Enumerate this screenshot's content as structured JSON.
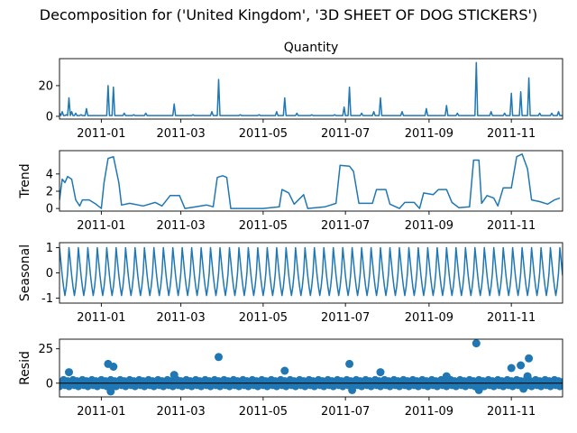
{
  "figure": {
    "suptitle": "Decomposition for ('United Kingdom', '3D SHEET OF DOG STICKERS')",
    "series_color": "#1f77b4"
  },
  "chart_data": [
    {
      "type": "line",
      "title": "Quantity",
      "ylabel": "",
      "xlim": [
        "2010-12-01",
        "2011-12-09"
      ],
      "ylim": [
        -1.8,
        37.6
      ],
      "yticks": [
        0,
        20
      ],
      "xticks": [
        "2011-01",
        "2011-03",
        "2011-05",
        "2011-07",
        "2011-09",
        "2011-11"
      ],
      "baseline": 0.5,
      "points": [
        [
          "2010-12-01",
          2
        ],
        [
          "2010-12-03",
          3
        ],
        [
          "2010-12-06",
          1
        ],
        [
          "2010-12-08",
          12
        ],
        [
          "2010-12-10",
          3
        ],
        [
          "2010-12-13",
          2
        ],
        [
          "2010-12-17",
          1
        ],
        [
          "2010-12-21",
          5
        ],
        [
          "2011-01-06",
          20
        ],
        [
          "2011-01-10",
          19
        ],
        [
          "2011-01-18",
          2
        ],
        [
          "2011-01-25",
          1
        ],
        [
          "2011-02-03",
          2
        ],
        [
          "2011-02-24",
          8
        ],
        [
          "2011-03-10",
          1
        ],
        [
          "2011-03-24",
          3
        ],
        [
          "2011-03-29",
          24
        ],
        [
          "2011-04-14",
          1
        ],
        [
          "2011-04-28",
          1
        ],
        [
          "2011-05-11",
          3
        ],
        [
          "2011-05-17",
          12
        ],
        [
          "2011-05-26",
          2
        ],
        [
          "2011-06-06",
          1
        ],
        [
          "2011-06-23",
          1
        ],
        [
          "2011-06-30",
          6
        ],
        [
          "2011-07-04",
          19
        ],
        [
          "2011-07-13",
          2
        ],
        [
          "2011-07-22",
          3
        ],
        [
          "2011-07-27",
          12
        ],
        [
          "2011-08-12",
          3
        ],
        [
          "2011-08-30",
          5
        ],
        [
          "2011-09-14",
          7
        ],
        [
          "2011-09-22",
          2
        ],
        [
          "2011-10-06",
          35
        ],
        [
          "2011-10-17",
          3
        ],
        [
          "2011-10-27",
          2
        ],
        [
          "2011-11-01",
          15
        ],
        [
          "2011-11-08",
          16
        ],
        [
          "2011-11-14",
          25
        ],
        [
          "2011-11-22",
          2
        ],
        [
          "2011-12-01",
          2
        ],
        [
          "2011-12-06",
          3
        ]
      ]
    },
    {
      "type": "line",
      "title": "",
      "ylabel": "Trend",
      "xlim": [
        "2010-12-01",
        "2011-12-09"
      ],
      "ylim": [
        -0.3,
        6.7
      ],
      "yticks": [
        0,
        2,
        4
      ],
      "xticks": [
        "2011-01",
        "2011-03",
        "2011-05",
        "2011-07",
        "2011-09",
        "2011-11"
      ],
      "points": [
        [
          "2010-12-01",
          1.0
        ],
        [
          "2010-12-03",
          3.4
        ],
        [
          "2010-12-05",
          3.0
        ],
        [
          "2010-12-07",
          3.7
        ],
        [
          "2010-12-10",
          3.4
        ],
        [
          "2010-12-13",
          1.0
        ],
        [
          "2010-12-16",
          0.3
        ],
        [
          "2010-12-18",
          1.0
        ],
        [
          "2010-12-23",
          1.0
        ],
        [
          "2010-12-28",
          0.5
        ],
        [
          "2011-01-01",
          0.0
        ],
        [
          "2011-01-03",
          3.0
        ],
        [
          "2011-01-06",
          5.8
        ],
        [
          "2011-01-10",
          6.0
        ],
        [
          "2011-01-14",
          3.0
        ],
        [
          "2011-01-16",
          0.4
        ],
        [
          "2011-01-22",
          0.6
        ],
        [
          "2011-02-01",
          0.3
        ],
        [
          "2011-02-10",
          0.7
        ],
        [
          "2011-02-15",
          0.3
        ],
        [
          "2011-02-21",
          1.5
        ],
        [
          "2011-02-28",
          1.5
        ],
        [
          "2011-03-04",
          0.0
        ],
        [
          "2011-03-12",
          0.2
        ],
        [
          "2011-03-20",
          0.4
        ],
        [
          "2011-03-25",
          0.2
        ],
        [
          "2011-03-28",
          3.6
        ],
        [
          "2011-04-01",
          3.8
        ],
        [
          "2011-04-04",
          3.6
        ],
        [
          "2011-04-07",
          0.0
        ],
        [
          "2011-05-01",
          0.0
        ],
        [
          "2011-05-13",
          0.2
        ],
        [
          "2011-05-15",
          2.2
        ],
        [
          "2011-05-20",
          1.8
        ],
        [
          "2011-05-24",
          0.5
        ],
        [
          "2011-05-31",
          1.6
        ],
        [
          "2011-06-03",
          0.0
        ],
        [
          "2011-06-16",
          0.2
        ],
        [
          "2011-06-20",
          0.4
        ],
        [
          "2011-06-24",
          0.6
        ],
        [
          "2011-06-27",
          5.0
        ],
        [
          "2011-07-04",
          4.9
        ],
        [
          "2011-07-07",
          4.3
        ],
        [
          "2011-07-11",
          0.6
        ],
        [
          "2011-07-21",
          0.6
        ],
        [
          "2011-07-24",
          2.2
        ],
        [
          "2011-07-31",
          2.2
        ],
        [
          "2011-08-03",
          0.5
        ],
        [
          "2011-08-10",
          0.0
        ],
        [
          "2011-08-14",
          0.7
        ],
        [
          "2011-08-21",
          0.7
        ],
        [
          "2011-08-25",
          0.0
        ],
        [
          "2011-08-28",
          1.8
        ],
        [
          "2011-09-04",
          1.6
        ],
        [
          "2011-09-08",
          2.2
        ],
        [
          "2011-09-14",
          2.2
        ],
        [
          "2011-09-18",
          0.7
        ],
        [
          "2011-09-23",
          0.1
        ],
        [
          "2011-10-01",
          0.2
        ],
        [
          "2011-10-04",
          5.6
        ],
        [
          "2011-10-08",
          5.6
        ],
        [
          "2011-10-10",
          0.6
        ],
        [
          "2011-10-14",
          1.5
        ],
        [
          "2011-10-19",
          1.2
        ],
        [
          "2011-10-22",
          0.3
        ],
        [
          "2011-10-26",
          2.4
        ],
        [
          "2011-11-01",
          2.4
        ],
        [
          "2011-11-05",
          6.0
        ],
        [
          "2011-11-09",
          6.3
        ],
        [
          "2011-11-13",
          4.6
        ],
        [
          "2011-11-16",
          1.0
        ],
        [
          "2011-11-22",
          0.8
        ],
        [
          "2011-11-28",
          0.5
        ],
        [
          "2011-12-03",
          1.0
        ],
        [
          "2011-12-07",
          1.2
        ]
      ]
    },
    {
      "type": "line",
      "title": "",
      "ylabel": "Seasonal",
      "xlim": [
        "2010-12-01",
        "2011-12-09"
      ],
      "ylim": [
        -1.2,
        1.2
      ],
      "yticks": [
        -1,
        0,
        1
      ],
      "xticks": [
        "2011-01",
        "2011-03",
        "2011-05",
        "2011-07",
        "2011-09",
        "2011-11"
      ],
      "period_days": 7,
      "cycle_values": [
        1.0,
        0.45,
        -0.1,
        -0.55,
        -0.9,
        -0.55,
        0.0
      ]
    },
    {
      "type": "scatter",
      "title": "",
      "ylabel": "Resid",
      "xlim": [
        "2010-12-01",
        "2011-12-09"
      ],
      "ylim": [
        -10,
        32
      ],
      "yticks": [
        0,
        25
      ],
      "xticks": [
        "2011-01",
        "2011-03",
        "2011-05",
        "2011-07",
        "2011-09",
        "2011-11"
      ],
      "points": [
        [
          "2010-12-08",
          8
        ],
        [
          "2011-01-06",
          14
        ],
        [
          "2011-01-10",
          12
        ],
        [
          "2011-02-24",
          6
        ],
        [
          "2011-03-29",
          19
        ],
        [
          "2011-05-17",
          9
        ],
        [
          "2011-07-04",
          14
        ],
        [
          "2011-07-27",
          8
        ],
        [
          "2011-09-14",
          5
        ],
        [
          "2011-10-06",
          29
        ],
        [
          "2011-11-01",
          11
        ],
        [
          "2011-11-08",
          13
        ],
        [
          "2011-11-14",
          18
        ],
        [
          "2011-11-13",
          5
        ],
        [
          "2011-01-08",
          -6
        ],
        [
          "2011-10-08",
          -5
        ],
        [
          "2011-07-06",
          -5
        ],
        [
          "2011-11-10",
          -4
        ]
      ]
    }
  ]
}
